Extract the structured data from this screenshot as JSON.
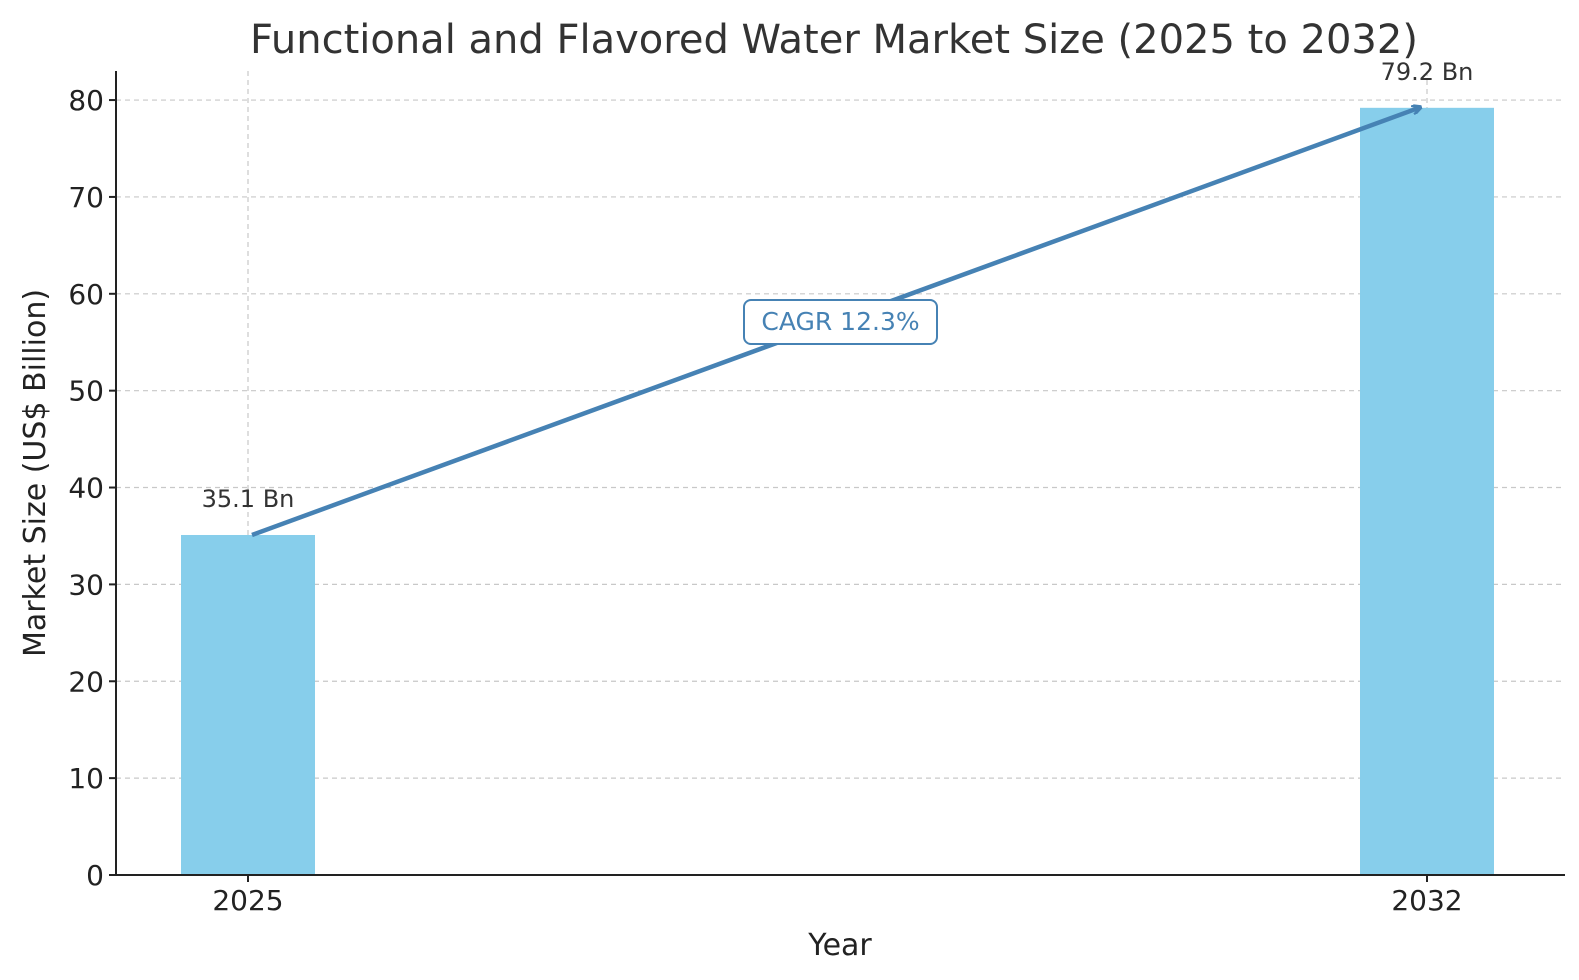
{
  "chart_data": {
    "type": "bar",
    "title": "Functional and Flavored Water Market Size (2025 to 2032)",
    "xlabel": "Year",
    "ylabel": "Market Size (US$ Billion)",
    "categories": [
      "2025",
      "2032"
    ],
    "values": [
      35.1,
      79.2
    ],
    "data_labels": [
      "35.1 Bn",
      "79.2 Bn"
    ],
    "ylim": [
      0,
      83
    ],
    "yticks": [
      0,
      10,
      20,
      30,
      40,
      50,
      60,
      70,
      80
    ],
    "grid": true,
    "bar_color": "#87ceeb",
    "annotation": {
      "text": "CAGR 12.3%",
      "from_value": 35.1,
      "to_value": 79.2,
      "color": "#4682b4"
    }
  }
}
